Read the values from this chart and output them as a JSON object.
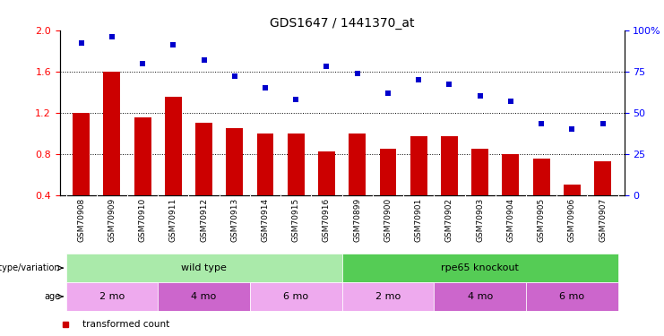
{
  "title": "GDS1647 / 1441370_at",
  "samples": [
    "GSM70908",
    "GSM70909",
    "GSM70910",
    "GSM70911",
    "GSM70912",
    "GSM70913",
    "GSM70914",
    "GSM70915",
    "GSM70916",
    "GSM70899",
    "GSM70900",
    "GSM70901",
    "GSM70902",
    "GSM70903",
    "GSM70904",
    "GSM70905",
    "GSM70906",
    "GSM70907"
  ],
  "transformed_count": [
    1.2,
    1.6,
    1.15,
    1.35,
    1.1,
    1.05,
    1.0,
    1.0,
    0.82,
    1.0,
    0.85,
    0.97,
    0.97,
    0.85,
    0.8,
    0.75,
    0.5,
    0.73
  ],
  "percentile_rank": [
    92,
    96,
    80,
    91,
    82,
    72,
    65,
    58,
    78,
    74,
    62,
    70,
    67,
    60,
    57,
    43,
    40,
    43
  ],
  "bar_color": "#cc0000",
  "scatter_color": "#0000cc",
  "ylim_left": [
    0.4,
    2.0
  ],
  "ylim_right": [
    0,
    100
  ],
  "yticks_left": [
    0.4,
    0.8,
    1.2,
    1.6,
    2.0
  ],
  "yticks_right": [
    0,
    25,
    50,
    75,
    100
  ],
  "ytick_labels_right": [
    "0",
    "25",
    "50",
    "75",
    "100%"
  ],
  "hlines": [
    0.8,
    1.2,
    1.6
  ],
  "genotype_groups": [
    {
      "label": "wild type",
      "start": 0,
      "end": 9,
      "color": "#aaeaaa"
    },
    {
      "label": "rpe65 knockout",
      "start": 9,
      "end": 18,
      "color": "#55cc55"
    }
  ],
  "age_groups": [
    {
      "label": "2 mo",
      "start": 0,
      "end": 3,
      "color": "#eeaaee"
    },
    {
      "label": "4 mo",
      "start": 3,
      "end": 6,
      "color": "#cc66cc"
    },
    {
      "label": "6 mo",
      "start": 6,
      "end": 9,
      "color": "#eeaaee"
    },
    {
      "label": "2 mo",
      "start": 9,
      "end": 12,
      "color": "#eeaaee"
    },
    {
      "label": "4 mo",
      "start": 12,
      "end": 15,
      "color": "#cc66cc"
    },
    {
      "label": "6 mo",
      "start": 15,
      "end": 18,
      "color": "#cc66cc"
    }
  ],
  "tick_fontsize": 8,
  "title_fontsize": 10,
  "bar_width": 0.55,
  "bg_color": "#ffffff",
  "xticklabel_bg": "#d8d8d8"
}
